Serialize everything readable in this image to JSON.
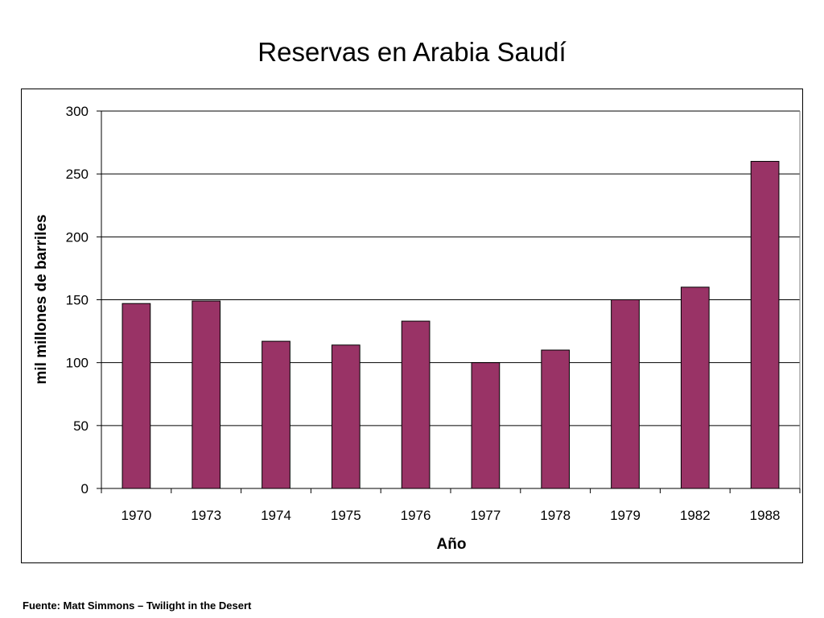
{
  "slide": {
    "source": "Fuente: Matt Simmons – Twilight in the Desert"
  },
  "chart_data": {
    "type": "bar",
    "title": "Reservas en Arabia Saudí",
    "xlabel": "Año",
    "ylabel": "mil millones de barriles",
    "categories": [
      "1970",
      "1973",
      "1974",
      "1975",
      "1976",
      "1977",
      "1978",
      "1979",
      "1982",
      "1988"
    ],
    "values": [
      147,
      149,
      117,
      114,
      133,
      100,
      110,
      150,
      160,
      260
    ],
    "ylim": [
      0,
      300
    ],
    "yticks": [
      0,
      50,
      100,
      150,
      200,
      250,
      300
    ],
    "grid": true,
    "legend": "none",
    "bar_color": "#993366"
  }
}
